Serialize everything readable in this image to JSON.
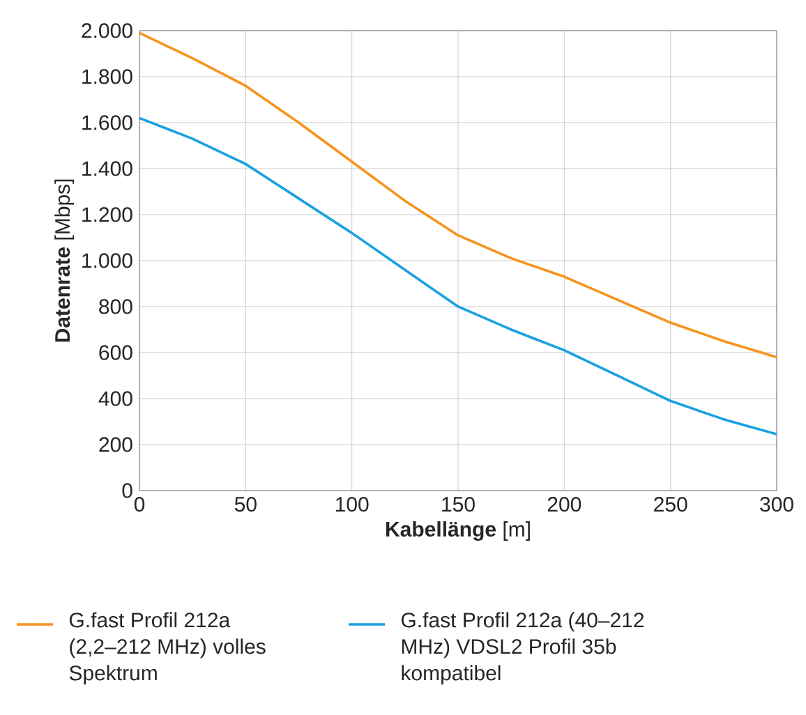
{
  "chart_data": {
    "type": "line",
    "xlabel": "**Kabellänge** [m]",
    "ylabel": "**Datenrate** [Mbps]",
    "x": [
      0,
      25,
      50,
      75,
      100,
      125,
      150,
      175,
      200,
      225,
      250,
      275,
      300
    ],
    "series": [
      {
        "name": "G.fast Profil 212a (2,2–212 MHz) volles Spektrum",
        "color": "#f7941d",
        "values": [
          1990,
          1880,
          1760,
          1600,
          1430,
          1260,
          1110,
          1010,
          930,
          830,
          730,
          650,
          580
        ]
      },
      {
        "name": "G.fast Profil 212a (40–212 MHz) VDSL2 Profil 35b kompatibel",
        "color": "#1ba1e2",
        "values": [
          1620,
          1530,
          1420,
          1270,
          1120,
          960,
          800,
          700,
          610,
          500,
          390,
          310,
          245
        ]
      }
    ],
    "xlim": [
      0,
      300
    ],
    "ylim": [
      0,
      2000
    ],
    "xticks": [
      0,
      50,
      100,
      150,
      200,
      250,
      300
    ],
    "yticks": [
      0,
      200,
      400,
      600,
      800,
      {
        "value": 1000,
        "label": "1.000"
      },
      {
        "value": 1200,
        "label": "1.200"
      },
      {
        "value": 1400,
        "label": "1.400"
      },
      {
        "value": 1600,
        "label": "1.600"
      },
      {
        "value": 1800,
        "label": "1.800"
      },
      {
        "value": 2000,
        "label": "2.000"
      }
    ],
    "grid": true,
    "legend": "bottom",
    "marker": "none",
    "line_style": "solid"
  }
}
